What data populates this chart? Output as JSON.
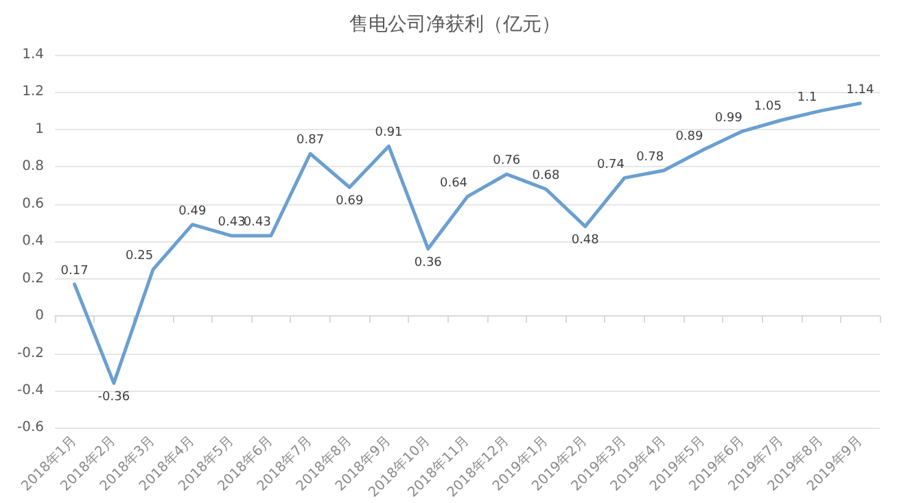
{
  "chart_data": {
    "type": "line",
    "title": "售电公司净获利（亿元）",
    "categories": [
      "2018年1月",
      "2018年2月",
      "2018年3月",
      "2018年4月",
      "2018年5月",
      "2018年6月",
      "2018年7月",
      "2018年8月",
      "2018年9月",
      "2018年10月",
      "2018年11月",
      "2018年12月",
      "2019年1月",
      "2019年2月",
      "2019年3月",
      "2019年4月",
      "2019年5月",
      "2019年6月",
      "2019年7月",
      "2019年8月",
      "2019年9月"
    ],
    "values": [
      0.17,
      -0.36,
      0.25,
      0.49,
      0.43,
      0.43,
      0.87,
      0.69,
      0.91,
      0.36,
      0.64,
      0.76,
      0.68,
      0.48,
      0.74,
      0.78,
      0.89,
      0.99,
      1.05,
      1.1,
      1.14
    ],
    "color": "#6a9fd0",
    "data_labels": true,
    "marker": "none",
    "grid": "y",
    "ylim": [
      -0.6,
      1.4
    ],
    "yticks": [
      -0.6,
      -0.4,
      -0.2,
      0,
      0.2,
      0.4,
      0.6,
      0.8,
      1,
      1.2,
      1.4
    ]
  }
}
